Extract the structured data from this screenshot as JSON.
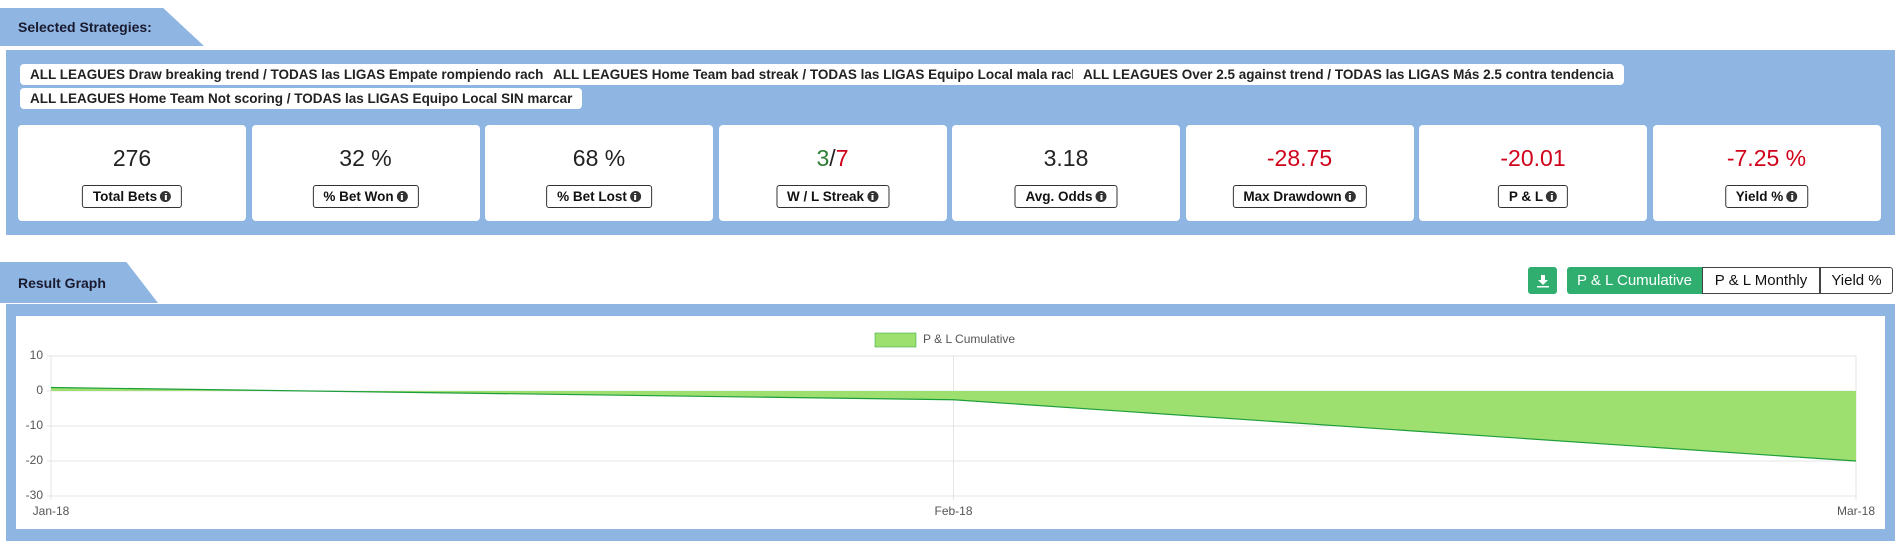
{
  "strategies_panel": {
    "title": "Selected Strategies:",
    "strategies": [
      "ALL LEAGUES Draw breaking trend / TODAS las LIGAS Empate rompiendo racha",
      "ALL LEAGUES Home Team bad streak / TODAS las LIGAS Equipo Local mala racha",
      "ALL LEAGUES Over 2.5 against trend / TODAS las LIGAS Más 2.5 contra tendencia",
      "ALL LEAGUES Home Team Not scoring / TODAS las LIGAS Equipo Local SIN marcar"
    ],
    "stats": [
      {
        "parts": [
          {
            "text": "276",
            "color": "#222222"
          }
        ],
        "label": "Total Bets"
      },
      {
        "parts": [
          {
            "text": "32 %",
            "color": "#222222"
          }
        ],
        "label": "% Bet Won"
      },
      {
        "parts": [
          {
            "text": "68 %",
            "color": "#222222"
          }
        ],
        "label": "% Bet Lost"
      },
      {
        "parts": [
          {
            "text": "3",
            "color": "#2e7d32"
          },
          {
            "text": "/",
            "color": "#222222"
          },
          {
            "text": "7",
            "color": "#d0021b"
          }
        ],
        "label": "W / L Streak"
      },
      {
        "parts": [
          {
            "text": "3.18",
            "color": "#222222"
          }
        ],
        "label": "Avg. Odds"
      },
      {
        "parts": [
          {
            "text": "-28.75",
            "color": "#d0021b"
          }
        ],
        "label": "Max Drawdown"
      },
      {
        "parts": [
          {
            "text": "-20.01",
            "color": "#d0021b"
          }
        ],
        "label": "P & L"
      },
      {
        "parts": [
          {
            "text": "-7.25 %",
            "color": "#d0021b"
          }
        ],
        "label": "Yield %"
      }
    ]
  },
  "result_graph": {
    "title": "Result Graph",
    "buttons": [
      "P & L Cumulative",
      "P & L Monthly",
      "Yield %"
    ],
    "active_button": 0
  },
  "chart_data": {
    "type": "area",
    "x": [
      "Jan-18",
      "Feb-18",
      "Mar-18"
    ],
    "series": [
      {
        "name": "P & L Cumulative",
        "color": "#1e9e3a",
        "fill": "#9de070",
        "values": [
          1,
          -2.5,
          -20.01
        ]
      }
    ],
    "ylim": [
      -30,
      10
    ],
    "yticks": [
      -30,
      -20,
      -10,
      0,
      10
    ],
    "grid": true,
    "legend": "top"
  }
}
